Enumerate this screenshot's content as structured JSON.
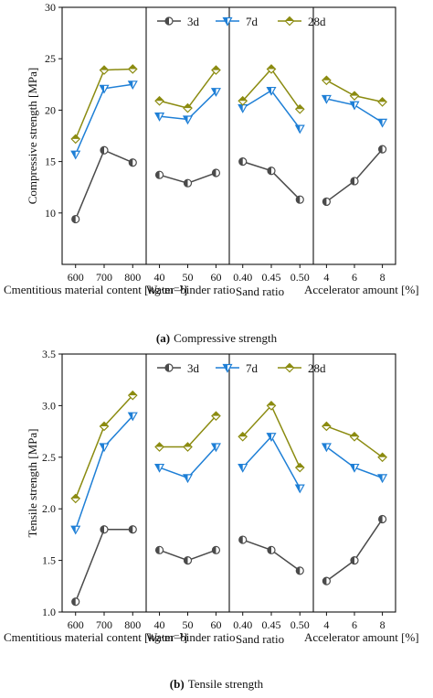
{
  "chart_data": [
    {
      "type": "line",
      "id": "a",
      "caption_prefix": "(a)",
      "caption_text": "Compressive strength",
      "ylabel": "Compressive strength [MPa]",
      "ylim": [
        5,
        30
      ],
      "yticks": [
        10,
        15,
        20,
        25,
        30
      ],
      "ytick_labels": [
        "10",
        "15",
        "20",
        "25",
        "30"
      ],
      "legend": {
        "placement": "top",
        "entries": [
          "3d",
          "7d",
          "28d"
        ]
      },
      "panels": [
        {
          "xlabel": "Cmentitious material content [kg·m⁻³]",
          "categories": [
            "600",
            "700",
            "800"
          ],
          "series": [
            {
              "name": "3d",
              "values": [
                9.4,
                16.1,
                14.9
              ]
            },
            {
              "name": "7d",
              "values": [
                15.7,
                22.1,
                22.5
              ]
            },
            {
              "name": "28d",
              "values": [
                17.2,
                23.9,
                24.0
              ]
            }
          ]
        },
        {
          "xlabel": "Water–binder ratio",
          "categories": [
            "40",
            "50",
            "60"
          ],
          "series": [
            {
              "name": "3d",
              "values": [
                13.7,
                12.9,
                13.9
              ]
            },
            {
              "name": "7d",
              "values": [
                19.4,
                19.1,
                21.8
              ]
            },
            {
              "name": "28d",
              "values": [
                20.9,
                20.2,
                23.9
              ]
            }
          ]
        },
        {
          "xlabel": "Sand ratio",
          "categories": [
            "0.40",
            "0.45",
            "0.50"
          ],
          "series": [
            {
              "name": "3d",
              "values": [
                15.0,
                14.1,
                11.3
              ]
            },
            {
              "name": "7d",
              "values": [
                20.2,
                21.9,
                18.2
              ]
            },
            {
              "name": "28d",
              "values": [
                20.9,
                24.0,
                20.1
              ]
            }
          ]
        },
        {
          "xlabel": "Accelerator amount [%]",
          "categories": [
            "4",
            "6",
            "8"
          ],
          "series": [
            {
              "name": "3d",
              "values": [
                11.1,
                13.1,
                16.2
              ]
            },
            {
              "name": "7d",
              "values": [
                21.1,
                20.5,
                18.8
              ]
            },
            {
              "name": "28d",
              "values": [
                22.9,
                21.4,
                20.8
              ]
            }
          ]
        }
      ]
    },
    {
      "type": "line",
      "id": "b",
      "caption_prefix": "(b)",
      "caption_text": "Tensile strength",
      "ylabel": "Tensile strength [MPa]",
      "ylim": [
        1.0,
        3.5
      ],
      "yticks": [
        1.0,
        1.5,
        2.0,
        2.5,
        3.0,
        3.5
      ],
      "ytick_labels": [
        "1.0",
        "1.5",
        "2.0",
        "2.5",
        "3.0",
        "3.5"
      ],
      "legend": {
        "placement": "top",
        "entries": [
          "3d",
          "7d",
          "28d"
        ]
      },
      "panels": [
        {
          "xlabel": "Cmentitious material content [kg·m⁻³]",
          "categories": [
            "600",
            "700",
            "800"
          ],
          "series": [
            {
              "name": "3d",
              "values": [
                1.1,
                1.8,
                1.8
              ]
            },
            {
              "name": "7d",
              "values": [
                1.8,
                2.6,
                2.9
              ]
            },
            {
              "name": "28d",
              "values": [
                2.1,
                2.8,
                3.1
              ]
            }
          ]
        },
        {
          "xlabel": "Water–binder ratio",
          "categories": [
            "40",
            "50",
            "60"
          ],
          "series": [
            {
              "name": "3d",
              "values": [
                1.6,
                1.5,
                1.6
              ]
            },
            {
              "name": "7d",
              "values": [
                2.4,
                2.3,
                2.6
              ]
            },
            {
              "name": "28d",
              "values": [
                2.6,
                2.6,
                2.9
              ]
            }
          ]
        },
        {
          "xlabel": "Sand ratio",
          "categories": [
            "0.40",
            "0.45",
            "0.50"
          ],
          "series": [
            {
              "name": "3d",
              "values": [
                1.7,
                1.6,
                1.4
              ]
            },
            {
              "name": "7d",
              "values": [
                2.4,
                2.7,
                2.2
              ]
            },
            {
              "name": "28d",
              "values": [
                2.7,
                3.0,
                2.4
              ]
            }
          ]
        },
        {
          "xlabel": "Accelerator amount [%]",
          "categories": [
            "4",
            "6",
            "8"
          ],
          "series": [
            {
              "name": "3d",
              "values": [
                1.3,
                1.5,
                1.9
              ]
            },
            {
              "name": "7d",
              "values": [
                2.6,
                2.4,
                2.3
              ]
            },
            {
              "name": "28d",
              "values": [
                2.8,
                2.7,
                2.5
              ]
            }
          ]
        }
      ]
    }
  ],
  "colors": {
    "3d": "#4a4a4a",
    "7d": "#1e7fd6",
    "28d": "#8b8b10"
  }
}
